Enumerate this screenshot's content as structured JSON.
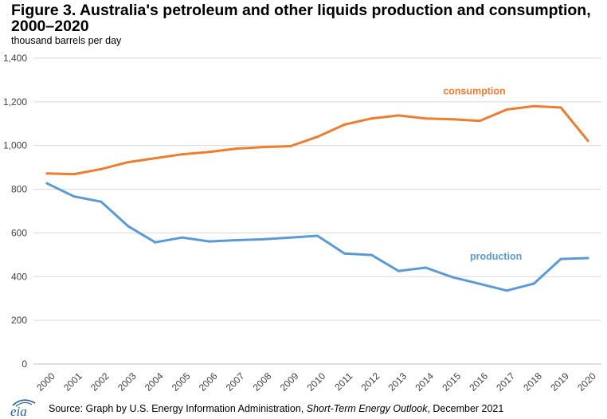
{
  "chart_data": {
    "type": "line",
    "title": "Figure 3. Australia's petroleum and other liquids production and consumption, 2000–2020",
    "ylabel": "thousand barrels per day",
    "xlabel": "",
    "x": [
      "2000",
      "2001",
      "2002",
      "2003",
      "2004",
      "2005",
      "2006",
      "2007",
      "2008",
      "2009",
      "2010",
      "2011",
      "2012",
      "2013",
      "2014",
      "2015",
      "2016",
      "2017",
      "2018",
      "2019",
      "2020"
    ],
    "ylim": [
      0,
      1400
    ],
    "yticks": [
      0,
      200,
      400,
      600,
      800,
      1000,
      1200,
      1400
    ],
    "ytick_labels": [
      "0",
      "200",
      "400",
      "600",
      "800",
      "1,000",
      "1,200",
      "1,400"
    ],
    "grid": true,
    "legend": "inline labels",
    "series": [
      {
        "name": "consumption",
        "color": "#ED7D31",
        "values": [
          872,
          869,
          892,
          924,
          942,
          960,
          971,
          986,
          993,
          997,
          1040,
          1096,
          1124,
          1138,
          1124,
          1120,
          1113,
          1165,
          1180,
          1174,
          1022
        ]
      },
      {
        "name": "production",
        "color": "#5B9BD5",
        "values": [
          827,
          767,
          743,
          631,
          557,
          579,
          561,
          567,
          571,
          579,
          587,
          506,
          499,
          426,
          441,
          397,
          367,
          336,
          368,
          481,
          485
        ]
      }
    ]
  },
  "source": {
    "prefix": "Source: Graph by U.S. Energy Information Administration, ",
    "publication": "Short-Term Energy Outlook",
    "suffix": ", December 2021"
  },
  "logo": {
    "text": "eia",
    "color": "#1F5C99"
  }
}
